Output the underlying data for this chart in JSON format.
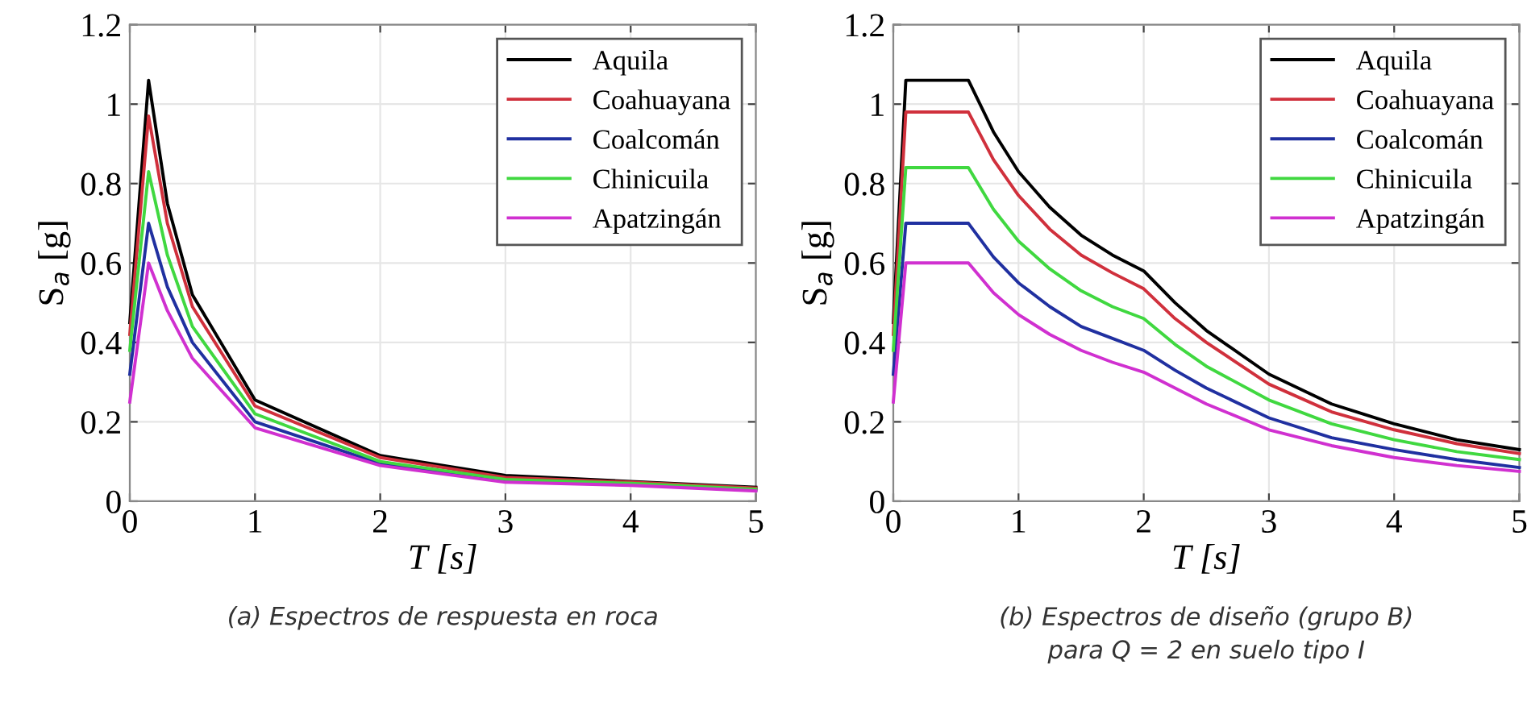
{
  "chart_data": [
    {
      "type": "line",
      "xlabel": "T [s]",
      "ylabel": "S$_{a}$ [g]",
      "xlim": [
        0,
        5
      ],
      "ylim": [
        0,
        1.2
      ],
      "xticks": [
        0,
        1,
        2,
        3,
        4,
        5
      ],
      "yticks": [
        0,
        0.2,
        0.4,
        0.6,
        0.8,
        1,
        1.2
      ],
      "grid": true,
      "legend": "top right",
      "x": [
        0,
        0.15,
        0.3,
        0.5,
        1,
        2,
        3,
        4,
        5
      ],
      "series": [
        {
          "name": "Aquila",
          "color": "#000000",
          "values": [
            0.45,
            1.06,
            0.75,
            0.52,
            0.255,
            0.115,
            0.065,
            0.05,
            0.035
          ]
        },
        {
          "name": "Coahuayana",
          "color": "#d0303c",
          "values": [
            0.42,
            0.97,
            0.7,
            0.49,
            0.24,
            0.11,
            0.06,
            0.048,
            0.033
          ]
        },
        {
          "name": "Coalcomán",
          "color": "#2030a0",
          "values": [
            0.32,
            0.7,
            0.54,
            0.4,
            0.2,
            0.095,
            0.05,
            0.042,
            0.028
          ]
        },
        {
          "name": "Chinicuila",
          "color": "#40d840",
          "values": [
            0.38,
            0.83,
            0.62,
            0.44,
            0.22,
            0.1,
            0.055,
            0.045,
            0.03
          ]
        },
        {
          "name": "Apatzingán",
          "color": "#d030d0",
          "values": [
            0.25,
            0.6,
            0.48,
            0.36,
            0.185,
            0.09,
            0.048,
            0.04,
            0.026
          ]
        }
      ],
      "annotations": [
        "(a) Espectros de respuesta en roca"
      ]
    },
    {
      "type": "line",
      "xlabel": "T [s]",
      "ylabel": "S$_{a}$ [g]",
      "xlim": [
        0,
        5
      ],
      "ylim": [
        0,
        1.2
      ],
      "xticks": [
        0,
        1,
        2,
        3,
        4,
        5
      ],
      "yticks": [
        0,
        0.2,
        0.4,
        0.6,
        0.8,
        1,
        1.2
      ],
      "grid": true,
      "legend": "top right",
      "x": [
        0,
        0.1,
        0.6,
        0.8,
        1,
        1.25,
        1.5,
        1.75,
        2,
        2.25,
        2.5,
        3,
        3.5,
        4,
        4.5,
        5
      ],
      "series": [
        {
          "name": "Aquila",
          "color": "#000000",
          "values": [
            0.45,
            1.06,
            1.06,
            0.93,
            0.83,
            0.74,
            0.67,
            0.62,
            0.58,
            0.5,
            0.43,
            0.32,
            0.245,
            0.195,
            0.155,
            0.13
          ]
        },
        {
          "name": "Coahuayana",
          "color": "#d0303c",
          "values": [
            0.42,
            0.98,
            0.98,
            0.86,
            0.77,
            0.685,
            0.62,
            0.575,
            0.535,
            0.46,
            0.4,
            0.295,
            0.225,
            0.18,
            0.145,
            0.12
          ]
        },
        {
          "name": "Coalcomán",
          "color": "#2030a0",
          "values": [
            0.32,
            0.7,
            0.7,
            0.615,
            0.55,
            0.49,
            0.44,
            0.41,
            0.38,
            0.33,
            0.285,
            0.21,
            0.16,
            0.13,
            0.105,
            0.085
          ]
        },
        {
          "name": "Chinicuila",
          "color": "#40d840",
          "values": [
            0.38,
            0.84,
            0.84,
            0.735,
            0.655,
            0.585,
            0.53,
            0.49,
            0.46,
            0.395,
            0.34,
            0.255,
            0.195,
            0.155,
            0.125,
            0.105
          ]
        },
        {
          "name": "Apatzingán",
          "color": "#d030d0",
          "values": [
            0.25,
            0.6,
            0.6,
            0.525,
            0.47,
            0.42,
            0.38,
            0.35,
            0.325,
            0.285,
            0.245,
            0.18,
            0.14,
            0.11,
            0.09,
            0.075
          ]
        }
      ],
      "annotations": [
        "(b) Espectros de diseño (grupo B)\npara Q = 2 en suelo tipo I"
      ]
    }
  ]
}
